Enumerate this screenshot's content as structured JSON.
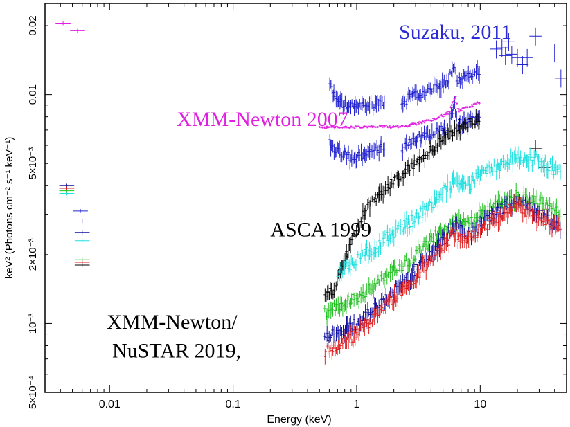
{
  "chart_data": {
    "type": "scatter",
    "title": "",
    "xlabel": "Energy (keV)",
    "ylabel": "keV² (Photons cm⁻² s⁻¹ keV⁻¹)",
    "xscale": "log",
    "yscale": "log",
    "xlim": [
      0.003,
      50
    ],
    "ylim": [
      0.0005,
      0.025
    ],
    "x_ticks": [
      {
        "value": 0.01,
        "label": "0.01"
      },
      {
        "value": 0.1,
        "label": "0.1"
      },
      {
        "value": 1,
        "label": "1"
      },
      {
        "value": 10,
        "label": "10"
      }
    ],
    "y_ticks": [
      {
        "value": 0.0005,
        "label": "5×10⁻⁴"
      },
      {
        "value": 0.001,
        "label": "10⁻³"
      },
      {
        "value": 0.002,
        "label": "2×10⁻³"
      },
      {
        "value": 0.005,
        "label": "5×10⁻³"
      },
      {
        "value": 0.01,
        "label": "0.01"
      },
      {
        "value": 0.02,
        "label": "0.02"
      }
    ],
    "annotations": [
      {
        "text": "Suzaku, 2011",
        "color": "#2a2ad8",
        "x": 2.2,
        "y": 0.0175
      },
      {
        "text": "XMM-Newton 2007",
        "color": "#e020e0",
        "x": 0.035,
        "y": 0.0073
      },
      {
        "text": "ASCA 1999",
        "color": "#000000",
        "x": 0.2,
        "y": 0.0024
      },
      {
        "text": "XMM-Newton/",
        "color": "#000000",
        "x": 0.0095,
        "y": 0.00095
      },
      {
        "text": "NuSTAR 2019,",
        "color": "#000000",
        "x": 0.0105,
        "y": 0.00071
      }
    ],
    "series": [
      {
        "name": "Suzaku 2011 (upper)",
        "color": "#2020d0",
        "segments": [
          {
            "x0": 0.6,
            "x1": 1.7,
            "points": [
              [
                0.6,
                0.0115
              ],
              [
                0.65,
                0.01
              ],
              [
                0.75,
                0.0092
              ],
              [
                0.9,
                0.0088
              ],
              [
                1.1,
                0.0089
              ],
              [
                1.3,
                0.009
              ],
              [
                1.5,
                0.0092
              ],
              [
                1.7,
                0.0094
              ]
            ]
          },
          {
            "x0": 2.3,
            "x1": 10,
            "points": [
              [
                2.3,
                0.0092
              ],
              [
                2.8,
                0.0098
              ],
              [
                3.5,
                0.0102
              ],
              [
                4.5,
                0.0108
              ],
              [
                5.5,
                0.0115
              ],
              [
                6.2,
                0.0135
              ],
              [
                6.6,
                0.0115
              ],
              [
                7.5,
                0.012
              ],
              [
                8.5,
                0.0125
              ],
              [
                10,
                0.0128
              ]
            ]
          }
        ],
        "hi_points": [
          [
            13.5,
            0.0158
          ],
          [
            15,
            0.016
          ],
          [
            16,
            0.0148
          ],
          [
            17,
            0.017
          ],
          [
            18,
            0.015
          ],
          [
            20,
            0.0145
          ],
          [
            22,
            0.0135
          ],
          [
            24,
            0.0145
          ],
          [
            28,
            0.018
          ],
          [
            40,
            0.0152
          ],
          [
            45,
            0.0118
          ]
        ],
        "lo_points": [
          [
            0.0058,
            0.0031
          ],
          [
            0.006,
            0.0028
          ]
        ]
      },
      {
        "name": "Suzaku 2011 (lower)",
        "color": "#2020d0",
        "segments": [
          {
            "x0": 0.6,
            "x1": 1.7,
            "points": [
              [
                0.6,
                0.0062
              ],
              [
                0.7,
                0.0057
              ],
              [
                0.85,
                0.0054
              ],
              [
                1.0,
                0.0053
              ],
              [
                1.2,
                0.0055
              ],
              [
                1.4,
                0.0057
              ],
              [
                1.7,
                0.0059
              ]
            ]
          },
          {
            "x0": 2.3,
            "x1": 10,
            "points": [
              [
                2.3,
                0.0058
              ],
              [
                2.8,
                0.0063
              ],
              [
                3.5,
                0.0066
              ],
              [
                4.5,
                0.0069
              ],
              [
                5.5,
                0.0072
              ],
              [
                6.2,
                0.009
              ],
              [
                6.6,
                0.0075
              ],
              [
                7.5,
                0.0076
              ],
              [
                8.5,
                0.0078
              ],
              [
                10,
                0.008
              ]
            ]
          }
        ],
        "hi_points": [],
        "lo_points": []
      },
      {
        "name": "XMM-Newton 2007",
        "color": "#e020e0",
        "segments": [
          {
            "x0": 0.5,
            "x1": 10,
            "points": [
              [
                0.5,
                0.0072
              ],
              [
                1,
                0.0072
              ],
              [
                2,
                0.00725
              ],
              [
                2.5,
                0.0073
              ],
              [
                3.5,
                0.0076
              ],
              [
                4.5,
                0.0079
              ],
              [
                5.5,
                0.0083
              ],
              [
                6.3,
                0.0098
              ],
              [
                6.7,
                0.0085
              ],
              [
                8,
                0.0088
              ],
              [
                10,
                0.0093
              ]
            ]
          }
        ],
        "hi_points": [],
        "lo_points": [
          [
            0.0042,
            0.0205
          ],
          [
            0.0055,
            0.019
          ]
        ]
      },
      {
        "name": "ASCA 1999",
        "color": "#000000",
        "segments": [
          {
            "x0": 0.55,
            "x1": 10,
            "points": [
              [
                0.55,
                0.0013
              ],
              [
                0.65,
                0.0014
              ],
              [
                0.75,
                0.0017
              ],
              [
                0.85,
                0.0021
              ],
              [
                1.0,
                0.0026
              ],
              [
                1.2,
                0.0032
              ],
              [
                1.5,
                0.0036
              ],
              [
                2,
                0.0042
              ],
              [
                3,
                0.005
              ],
              [
                4,
                0.0058
              ],
              [
                5,
                0.0063
              ],
              [
                6,
                0.0068
              ],
              [
                7,
                0.0072
              ],
              [
                8.5,
                0.0076
              ],
              [
                10,
                0.008
              ]
            ]
          }
        ],
        "hi_points": [
          [
            28,
            0.0058
          ],
          [
            33,
            0.0048
          ]
        ],
        "lo_points": [
          [
            0.0045,
            0.0039
          ],
          [
            0.006,
            0.0018
          ]
        ]
      },
      {
        "name": "XMM/NuSTAR 2019 (cyan)",
        "color": "#20e0e0",
        "segments": [
          {
            "x0": 0.7,
            "x1": 45,
            "points": [
              [
                0.7,
                0.0017
              ],
              [
                1,
                0.0019
              ],
              [
                1.5,
                0.0022
              ],
              [
                2,
                0.0025
              ],
              [
                3,
                0.0029
              ],
              [
                4,
                0.0033
              ],
              [
                6.3,
                0.0042
              ],
              [
                8,
                0.004
              ],
              [
                10,
                0.0044
              ],
              [
                15,
                0.005
              ],
              [
                20,
                0.0052
              ],
              [
                30,
                0.0052
              ],
              [
                45,
                0.0045
              ]
            ]
          }
        ],
        "hi_points": [],
        "lo_points": [
          [
            0.0045,
            0.0037
          ],
          [
            0.006,
            0.0023
          ]
        ]
      },
      {
        "name": "XMM/NuSTAR 2019 (green)",
        "color": "#20c020",
        "segments": [
          {
            "x0": 0.55,
            "x1": 45,
            "points": [
              [
                0.55,
                0.0011
              ],
              [
                1,
                0.0013
              ],
              [
                1.5,
                0.0015
              ],
              [
                2,
                0.0017
              ],
              [
                3,
                0.002
              ],
              [
                4,
                0.0023
              ],
              [
                6.3,
                0.0029
              ],
              [
                8,
                0.0027
              ],
              [
                10,
                0.003
              ],
              [
                15,
                0.0034
              ],
              [
                20,
                0.0036
              ],
              [
                30,
                0.0034
              ],
              [
                45,
                0.003
              ]
            ]
          }
        ],
        "hi_points": [],
        "lo_points": [
          [
            0.0045,
            0.0038
          ],
          [
            0.006,
            0.0019
          ]
        ]
      },
      {
        "name": "XMM/NuSTAR 2019 (navy)",
        "color": "#1010a0",
        "segments": [
          {
            "x0": 0.55,
            "x1": 45,
            "points": [
              [
                0.55,
                0.00085
              ],
              [
                1,
                0.001
              ],
              [
                1.5,
                0.0012
              ],
              [
                2,
                0.0014
              ],
              [
                3,
                0.0017
              ],
              [
                4,
                0.002
              ],
              [
                6.3,
                0.0027
              ],
              [
                8,
                0.0024
              ],
              [
                10,
                0.0027
              ],
              [
                15,
                0.0032
              ],
              [
                20,
                0.0035
              ],
              [
                30,
                0.003
              ],
              [
                45,
                0.0027
              ]
            ]
          }
        ],
        "hi_points": [],
        "lo_points": [
          [
            0.0045,
            0.004
          ],
          [
            0.006,
            0.0025
          ]
        ]
      },
      {
        "name": "XMM/NuSTAR 2019 (red)",
        "color": "#e02020",
        "segments": [
          {
            "x0": 0.55,
            "x1": 45,
            "points": [
              [
                0.55,
                0.00075
              ],
              [
                1,
                0.0009
              ],
              [
                1.5,
                0.0011
              ],
              [
                2,
                0.0013
              ],
              [
                3,
                0.0016
              ],
              [
                4,
                0.0019
              ],
              [
                6.3,
                0.0025
              ],
              [
                8,
                0.0023
              ],
              [
                10,
                0.0026
              ],
              [
                15,
                0.003
              ],
              [
                20,
                0.0033
              ],
              [
                30,
                0.0029
              ],
              [
                45,
                0.0026
              ]
            ]
          }
        ],
        "hi_points": [],
        "lo_points": [
          [
            0.0045,
            0.0039
          ],
          [
            0.006,
            0.00185
          ]
        ]
      }
    ]
  }
}
